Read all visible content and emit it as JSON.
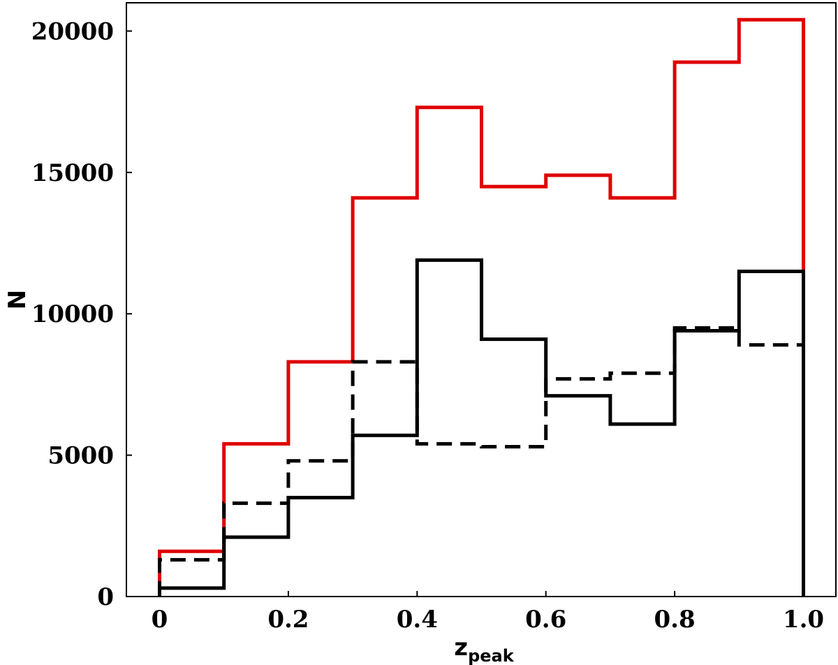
{
  "chart_data": {
    "type": "histogram",
    "title": "",
    "xlabel": "z",
    "xlabel_subscript": "peak",
    "ylabel": "N",
    "xlim": [
      -0.05,
      1.05
    ],
    "ylim": [
      0,
      21000
    ],
    "grid": false,
    "legend": "none",
    "x_ticks": [
      0,
      0.2,
      0.4,
      0.6,
      0.8,
      1.0
    ],
    "x_tick_labels": [
      "0",
      "0.2",
      "0.4",
      "0.6",
      "0.8",
      "1.0"
    ],
    "y_ticks": [
      0,
      5000,
      10000,
      15000,
      20000
    ],
    "y_tick_labels": [
      "0",
      "5000",
      "10000",
      "15000",
      "20000"
    ],
    "bin_edges": [
      0,
      0.1,
      0.2,
      0.3,
      0.4,
      0.5,
      0.6,
      0.7,
      0.8,
      0.9,
      1.0
    ],
    "series": [
      {
        "color": "#e00000",
        "style": "solid",
        "values": [
          1600,
          5400,
          8300,
          14100,
          17300,
          14500,
          14900,
          14100,
          18900,
          20400
        ]
      },
      {
        "color": "#000000",
        "style": "solid",
        "values": [
          300,
          2100,
          3500,
          5700,
          11900,
          9100,
          7100,
          6100,
          9400,
          11500
        ]
      },
      {
        "color": "#000000",
        "style": "dashed",
        "values": [
          1300,
          3300,
          4800,
          8300,
          5400,
          5300,
          7700,
          7900,
          9500,
          8900
        ]
      }
    ]
  }
}
